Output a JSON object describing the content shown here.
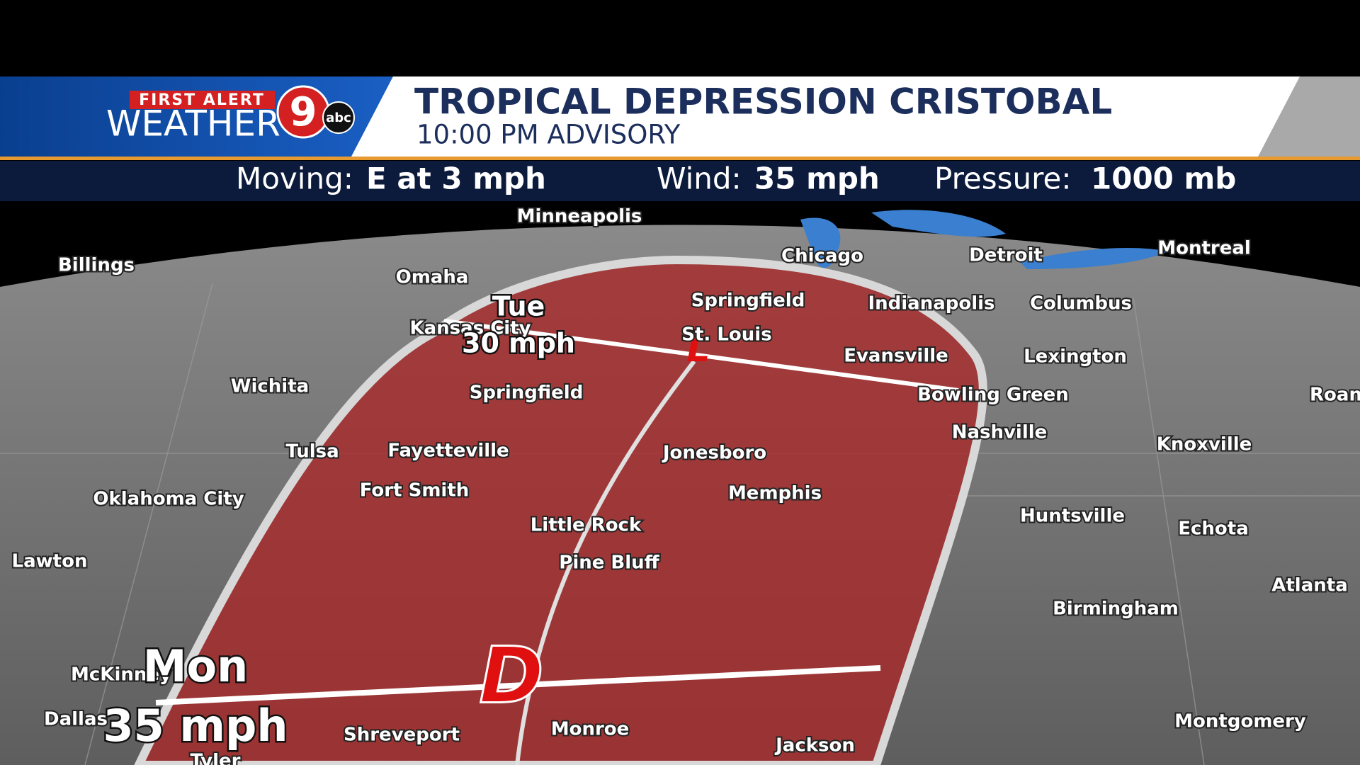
{
  "logo": {
    "first_alert": "FIRST ALERT",
    "weather": "WEATHER",
    "channel": "9",
    "network": "abc"
  },
  "header": {
    "title": "TROPICAL DEPRESSION CRISTOBAL",
    "subtitle": "10:00 PM ADVISORY"
  },
  "stats": [
    {
      "label": "Moving:",
      "value": "E at 3 mph"
    },
    {
      "label": "Wind:",
      "value": "35 mph"
    },
    {
      "label": "Pressure:",
      "value": "1000 mb"
    }
  ],
  "track": [
    {
      "day": "Tue",
      "speed": "30 mph"
    },
    {
      "day": "Mon",
      "speed": "35 mph"
    }
  ],
  "symbols": {
    "depression": "D",
    "low": "L"
  },
  "cities": [
    "Minneapolis",
    "Billings",
    "Omaha",
    "Chicago",
    "Detroit",
    "Montreal",
    "Springfield",
    "Indianapolis",
    "Columbus",
    "Kansas City",
    "St. Louis",
    "Evansville",
    "Lexington",
    "Wichita",
    "Springfield",
    "Bowling Green",
    "Roan",
    "Nashville",
    "Tulsa",
    "Fayetteville",
    "Jonesboro",
    "Knoxville",
    "Oklahoma City",
    "Fort Smith",
    "Memphis",
    "Huntsville",
    "Echota",
    "Little Rock",
    "Lawton",
    "Pine Bluff",
    "Atlanta",
    "Birmingham",
    "McKinney",
    "Dallas",
    "Shreveport",
    "Monroe",
    "Jackson",
    "Montgomery",
    "Tyler"
  ]
}
